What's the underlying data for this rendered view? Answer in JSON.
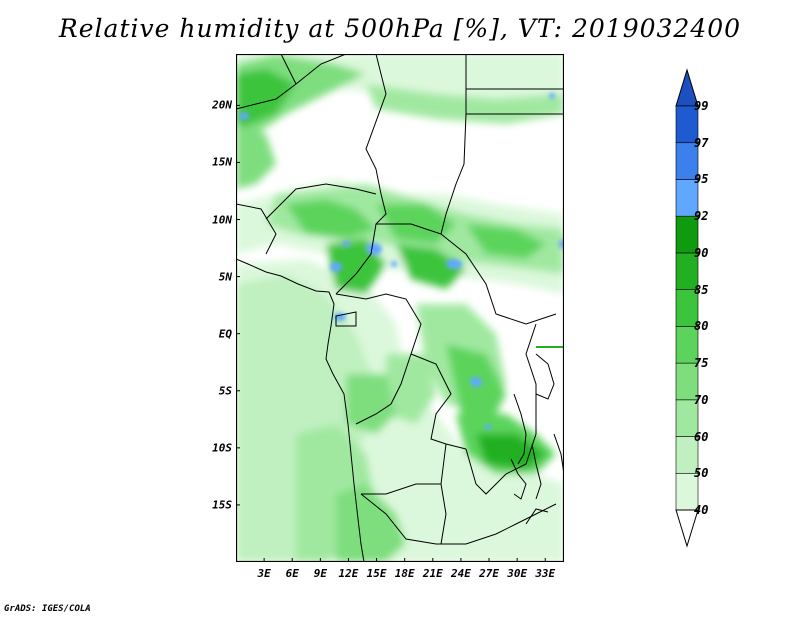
{
  "title": "Relative humidity at 500hPa [%], VT: 2019032400",
  "credit": "GrADS: IGES/COLA",
  "map": {
    "projection": "lat-lon",
    "lon_range": [
      0,
      35
    ],
    "lat_range": [
      -20,
      24.5
    ],
    "lat_labels": [
      {
        "text": "20N",
        "lat": 20
      },
      {
        "text": "15N",
        "lat": 15
      },
      {
        "text": "10N",
        "lat": 10
      },
      {
        "text": "5N",
        "lat": 5
      },
      {
        "text": "EQ",
        "lat": 0
      },
      {
        "text": "5S",
        "lat": -5
      },
      {
        "text": "10S",
        "lat": -10
      },
      {
        "text": "15S",
        "lat": -15
      }
    ],
    "lon_labels": [
      {
        "text": "3E",
        "lon": 3
      },
      {
        "text": "6E",
        "lon": 6
      },
      {
        "text": "9E",
        "lon": 9
      },
      {
        "text": "12E",
        "lon": 12
      },
      {
        "text": "15E",
        "lon": 15
      },
      {
        "text": "18E",
        "lon": 18
      },
      {
        "text": "21E",
        "lon": 21
      },
      {
        "text": "24E",
        "lon": 24
      },
      {
        "text": "27E",
        "lon": 27
      },
      {
        "text": "30E",
        "lon": 30
      },
      {
        "text": "33E",
        "lon": 33
      }
    ]
  },
  "colorbar": {
    "levels": [
      {
        "label": "40",
        "color": "#f0fff0"
      },
      {
        "label": "50",
        "color": "#dcf8dc"
      },
      {
        "label": "60",
        "color": "#c0f0c0"
      },
      {
        "label": "70",
        "color": "#a0e8a0"
      },
      {
        "label": "75",
        "color": "#7ede7e"
      },
      {
        "label": "80",
        "color": "#5cd45c"
      },
      {
        "label": "85",
        "color": "#3cc43c"
      },
      {
        "label": "90",
        "color": "#22b022"
      },
      {
        "label": "92",
        "color": "#109a10"
      },
      {
        "label": "95",
        "color": "#60a8ff"
      },
      {
        "label": "97",
        "color": "#3c80ec"
      },
      {
        "label": "99",
        "color": "#1e5ad0"
      }
    ],
    "under_color": "#ffffff",
    "over_color": "#1e4fc0"
  }
}
